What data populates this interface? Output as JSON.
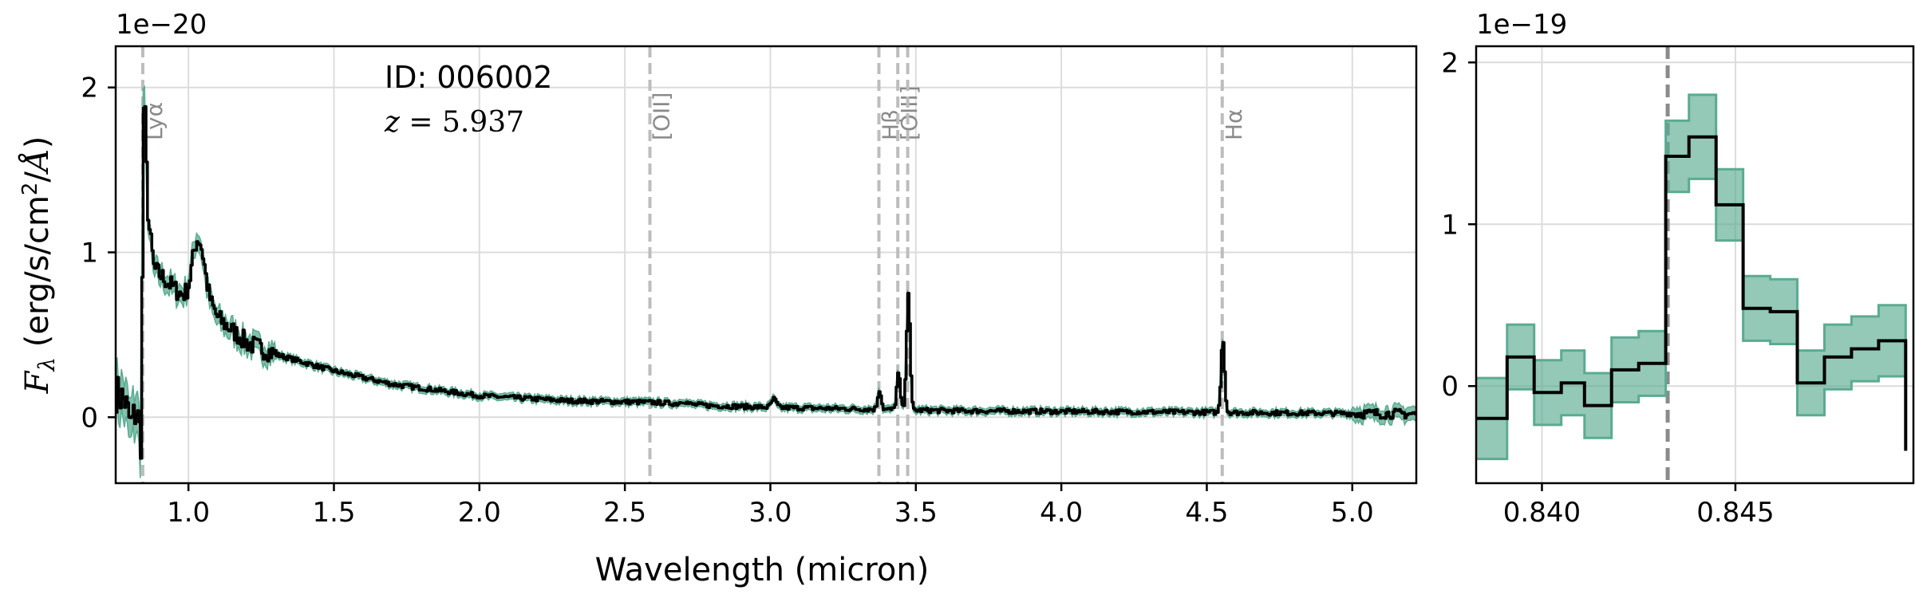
{
  "chart_data": [
    {
      "type": "line",
      "panel": "main",
      "xlabel": "Wavelength (micron)",
      "ylabel": "F_λ (erg/s/cm²/Å)",
      "ylabel_parts": {
        "symbol": "F",
        "sub": "λ",
        "units_a": " (erg/s/cm",
        "sup": "2",
        "units_b": "/",
        "angstrom": "Å",
        "units_c": ")"
      },
      "offset_text": "1e−20",
      "xlim": [
        0.75,
        5.22
      ],
      "ylim": [
        -0.4,
        2.25
      ],
      "x_ticks": [
        1.0,
        1.5,
        2.0,
        2.5,
        3.0,
        3.5,
        4.0,
        4.5,
        5.0
      ],
      "x_tick_labels": [
        "1.0",
        "1.5",
        "2.0",
        "2.5",
        "3.0",
        "3.5",
        "4.0",
        "4.5",
        "5.0"
      ],
      "y_ticks": [
        0,
        1,
        2
      ],
      "y_tick_labels": [
        "0",
        "1",
        "2"
      ],
      "grid": true,
      "annotation": {
        "id_label": "ID: 006002",
        "z_symbol": "z",
        "z_text": " = 5.937"
      },
      "emission_lines": [
        {
          "name": "Lyα",
          "x": 0.843
        },
        {
          "name": "[OII]",
          "x": 2.586
        },
        {
          "name": "Hβ",
          "x": 3.373
        },
        {
          "name": "[OIII]",
          "x": 3.438
        },
        {
          "name": "",
          "x": 3.472
        },
        {
          "name": "Hα",
          "x": 4.553
        }
      ],
      "spectrum_knots": [
        {
          "x": 0.75,
          "y": 0.15
        },
        {
          "x": 0.78,
          "y": 0.1
        },
        {
          "x": 0.8,
          "y": -0.05
        },
        {
          "x": 0.82,
          "y": 0.05
        },
        {
          "x": 0.835,
          "y": -0.15
        },
        {
          "x": 0.845,
          "y": 2.02
        },
        {
          "x": 0.86,
          "y": 1.2
        },
        {
          "x": 0.88,
          "y": 0.9
        },
        {
          "x": 0.95,
          "y": 0.78
        },
        {
          "x": 1.0,
          "y": 0.7
        },
        {
          "x": 1.05,
          "y": 0.75
        },
        {
          "x": 1.1,
          "y": 0.6
        },
        {
          "x": 1.2,
          "y": 0.45
        },
        {
          "x": 1.3,
          "y": 0.38
        },
        {
          "x": 1.5,
          "y": 0.28
        },
        {
          "x": 1.7,
          "y": 0.2
        },
        {
          "x": 2.0,
          "y": 0.13
        },
        {
          "x": 2.3,
          "y": 0.1
        },
        {
          "x": 2.6,
          "y": 0.09
        },
        {
          "x": 2.8,
          "y": 0.07
        },
        {
          "x": 3.0,
          "y": 0.06
        },
        {
          "x": 3.3,
          "y": 0.05
        },
        {
          "x": 3.6,
          "y": 0.04
        },
        {
          "x": 4.0,
          "y": 0.035
        },
        {
          "x": 4.5,
          "y": 0.03
        },
        {
          "x": 5.22,
          "y": 0.02
        }
      ],
      "spectrum_peaks": [
        {
          "x": 1.03,
          "y": 0.35,
          "w": 0.02
        },
        {
          "x": 3.01,
          "y": 0.05,
          "w": 0.008
        },
        {
          "x": 2.7,
          "y": 0.02,
          "w": 0.01
        },
        {
          "x": 3.373,
          "y": 0.12,
          "w": 0.006
        },
        {
          "x": 3.438,
          "y": 0.22,
          "w": 0.006
        },
        {
          "x": 3.472,
          "y": 0.72,
          "w": 0.006
        },
        {
          "x": 4.553,
          "y": 0.45,
          "w": 0.006
        }
      ],
      "error_band_color": "#5aab91",
      "line_color": "#000000"
    },
    {
      "type": "line",
      "panel": "zoom",
      "offset_text": "1e−19",
      "xlim": [
        0.8383,
        0.8496
      ],
      "ylim": [
        -0.6,
        2.1
      ],
      "x_ticks": [
        0.84,
        0.845
      ],
      "x_tick_labels": [
        "0.840",
        "0.845"
      ],
      "y_ticks": [
        0,
        1,
        2
      ],
      "y_tick_labels": [
        "0",
        "1",
        "2"
      ],
      "grid": true,
      "marker_x": 0.84325,
      "step_x": [
        0.8383,
        0.8391,
        0.8398,
        0.8405,
        0.8411,
        0.8418,
        0.8425,
        0.8432,
        0.8438,
        0.8445,
        0.8452,
        0.8459,
        0.8466,
        0.8473,
        0.848,
        0.8487,
        0.8494
      ],
      "step_y": [
        -0.2,
        0.18,
        -0.04,
        0.02,
        -0.12,
        0.1,
        0.14,
        1.42,
        1.54,
        1.12,
        0.48,
        0.46,
        0.02,
        0.18,
        0.23,
        0.28,
        0.0
      ],
      "step_err": [
        0.25,
        0.2,
        0.2,
        0.2,
        0.2,
        0.2,
        0.2,
        0.22,
        0.26,
        0.22,
        0.2,
        0.2,
        0.2,
        0.2,
        0.2,
        0.22,
        0.4
      ],
      "error_band_color": "#5aab91",
      "line_color": "#000000"
    }
  ]
}
